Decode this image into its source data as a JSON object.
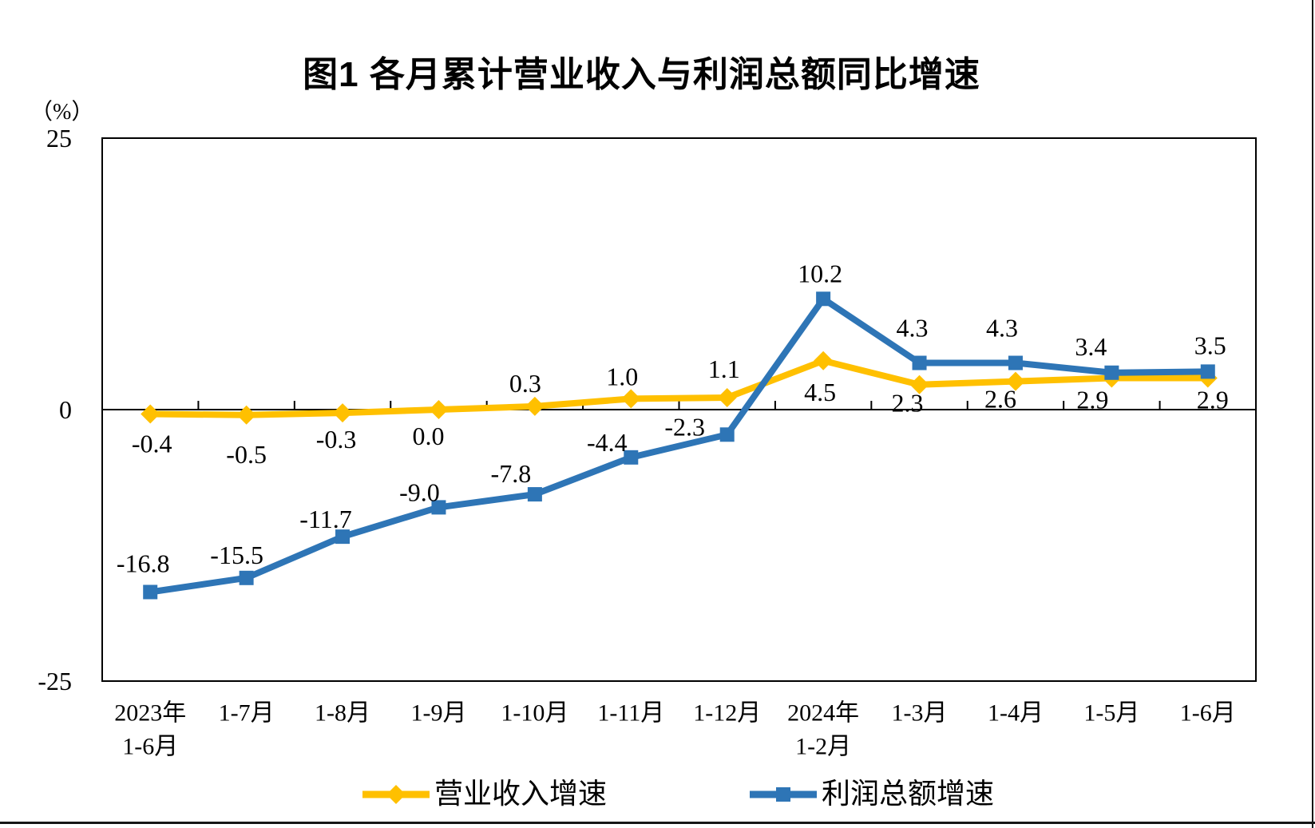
{
  "chart_data": {
    "type": "line",
    "title": "图1  各月累计营业收入与利润总额同比增速",
    "unit_label": "（%）",
    "ylim": [
      -25,
      25
    ],
    "yticks": [
      25,
      0,
      -25
    ],
    "grid": "zero-axis-line-only",
    "legend_position": "bottom",
    "categories": [
      "2023年\n1-6月",
      "1-7月",
      "1-8月",
      "1-9月",
      "1-10月",
      "1-11月",
      "1-12月",
      "2024年\n1-2月",
      "1-3月",
      "1-4月",
      "1-5月",
      "1-6月"
    ],
    "series": [
      {
        "name": "营业收入增速",
        "color": "#FFC000",
        "marker": "diamond",
        "values": [
          -0.4,
          -0.5,
          -0.3,
          0.0,
          0.3,
          1.0,
          1.1,
          4.5,
          2.3,
          2.6,
          2.9,
          2.9
        ],
        "label_offsets": [
          [
            2,
            37
          ],
          [
            0,
            49
          ],
          [
            -8,
            33
          ],
          [
            -13,
            33
          ],
          [
            -12,
            -29
          ],
          [
            -11,
            -28
          ],
          [
            -4,
            -36
          ],
          [
            -4,
            39
          ],
          [
            -15,
            23
          ],
          [
            -19,
            22
          ],
          [
            -24,
            27
          ],
          [
            6,
            27
          ]
        ]
      },
      {
        "name": "利润总额增速",
        "color": "#2E75B6",
        "marker": "square",
        "values": [
          -16.8,
          -15.5,
          -11.7,
          -9.0,
          -7.8,
          -4.4,
          -2.3,
          10.2,
          4.3,
          4.3,
          3.4,
          3.5
        ],
        "label_offsets": [
          [
            -9,
            -36
          ],
          [
            -12,
            -29
          ],
          [
            -21,
            -22
          ],
          [
            -24,
            -19
          ],
          [
            -30,
            -26
          ],
          [
            -30,
            -19
          ],
          [
            -53,
            -10
          ],
          [
            -4,
            -32
          ],
          [
            -9,
            -44
          ],
          [
            -17,
            -44
          ],
          [
            -26,
            -33
          ],
          [
            3,
            -33
          ]
        ]
      }
    ]
  }
}
